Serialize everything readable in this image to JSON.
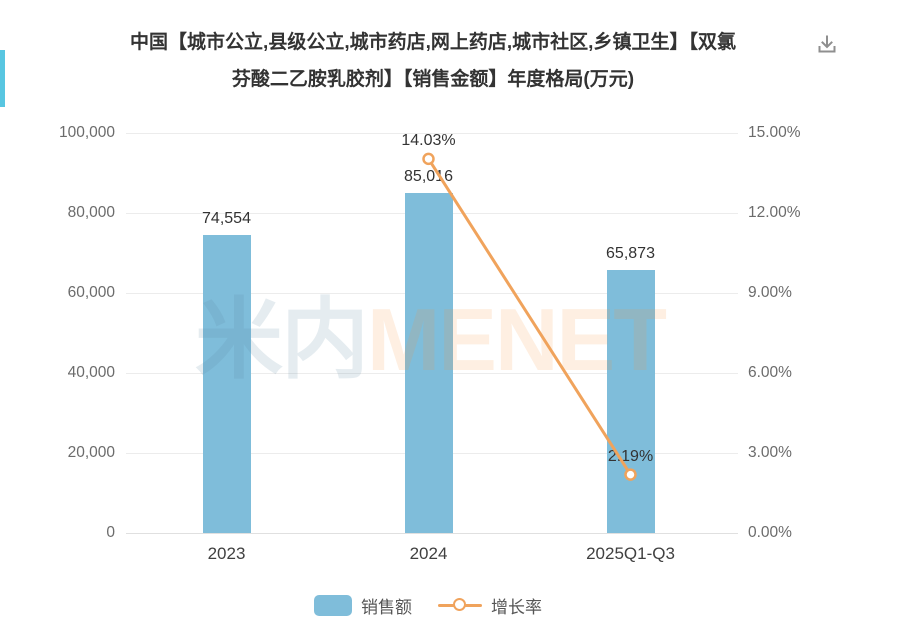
{
  "header": {
    "title_line1": "中国【城市公立,县级公立,城市药店,网上药店,城市社区,乡镇卫生】【双氯",
    "title_line2": "芬酸二乙胺乳胶剂】【销售金额】年度格局(万元)",
    "icons": {
      "top_right": "download-icon"
    }
  },
  "watermark": {
    "part1": "米内",
    "part2": "MENET"
  },
  "chart_data": {
    "type": "bar",
    "subtype": "bar+line combo, dual axis",
    "title": "中国【城市公立,县级公立,城市药店,网上药店,城市社区,乡镇卫生】【双氯芬酸二乙胺乳胶剂】【销售金额】年度格局(万元)",
    "categories": [
      "2023",
      "2024",
      "2025Q1-Q3"
    ],
    "series": [
      {
        "name": "销售额",
        "type": "bar",
        "axis": "left",
        "values": [
          74554,
          85016,
          65873
        ],
        "value_labels": [
          "74,554",
          "85,016",
          "65,873"
        ],
        "color": "#7fbdda"
      },
      {
        "name": "增长率",
        "type": "line",
        "axis": "right",
        "values": [
          null,
          14.03,
          2.19
        ],
        "value_labels": [
          null,
          "14.03%",
          "2.19%"
        ],
        "color": "#f0a35c"
      }
    ],
    "left_axis": {
      "ticks": [
        "0",
        "20,000",
        "40,000",
        "60,000",
        "80,000",
        "100,000"
      ],
      "range": [
        0,
        100000
      ],
      "unit": "万元"
    },
    "right_axis": {
      "ticks": [
        "0.00%",
        "3.00%",
        "6.00%",
        "9.00%",
        "12.00%",
        "15.00%"
      ],
      "range": [
        0,
        15
      ]
    },
    "grid": true,
    "legend_position": "bottom"
  },
  "colors": {
    "bar": "#7fbdda",
    "line": "#f0a35c",
    "accent": "#58c6e1",
    "title_text": "#333333",
    "axis_text": "#6b6b6b",
    "grid": "#ececec",
    "download_icon": "#8f8f8f"
  }
}
